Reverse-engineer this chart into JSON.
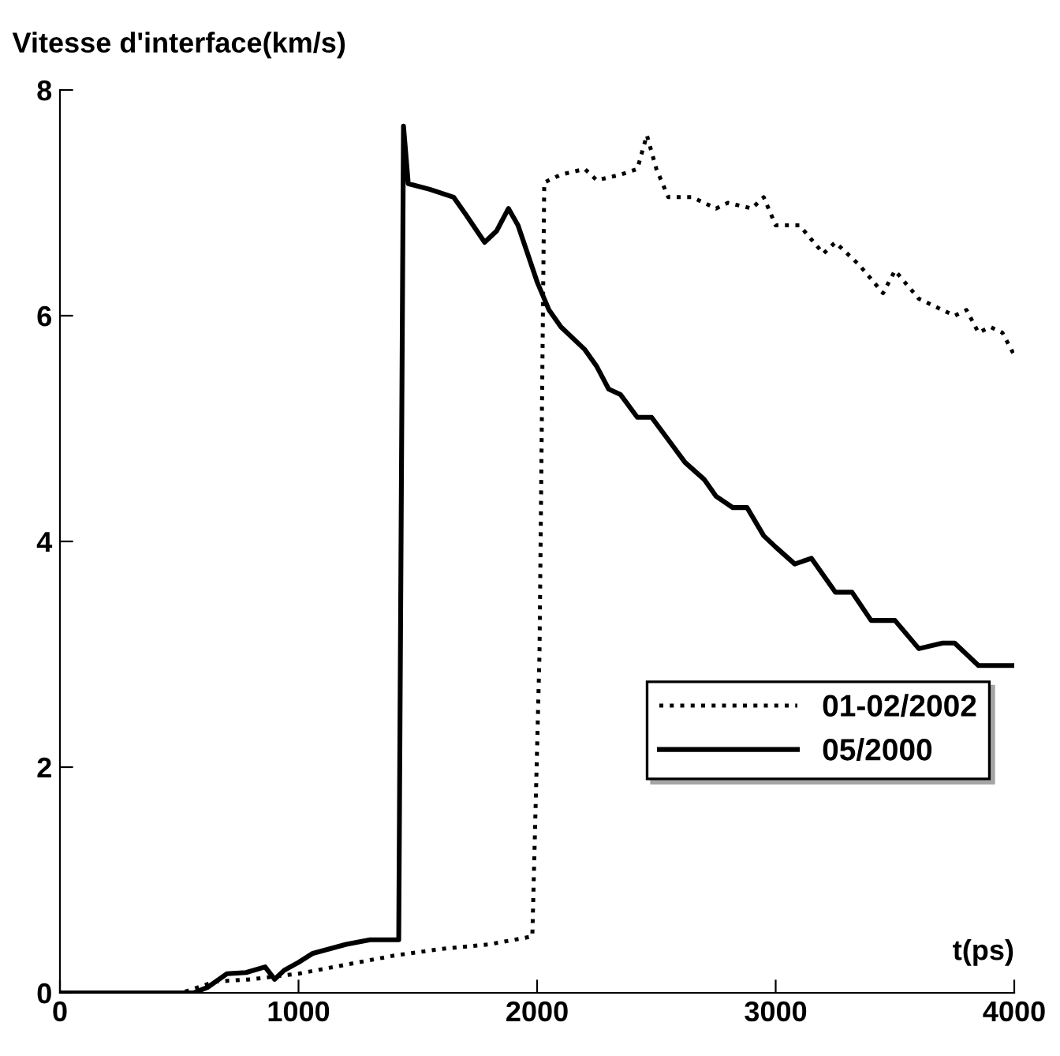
{
  "chart_data": {
    "type": "line",
    "xlabel": "t(ps)",
    "ylabel": "Vitesse d'interface(km/s)",
    "xlim": [
      0,
      4000
    ],
    "ylim": [
      0,
      8
    ],
    "xticks": [
      0,
      1000,
      2000,
      3000,
      4000
    ],
    "yticks": [
      0,
      2,
      4,
      6,
      8
    ],
    "grid": false,
    "legend": "bottom right",
    "series": [
      {
        "name": "01-02/2002",
        "color": "#000000",
        "line_style": "dotted",
        "x": [
          0,
          510,
          650,
          800,
          1000,
          1200,
          1400,
          1600,
          1800,
          1980,
          2010,
          2030,
          2100,
          2200,
          2250,
          2350,
          2420,
          2460,
          2500,
          2550,
          2650,
          2750,
          2800,
          2900,
          2950,
          3000,
          3100,
          3200,
          3250,
          3350,
          3450,
          3500,
          3600,
          3750,
          3800,
          3850,
          3900,
          3950,
          4000
        ],
        "values": [
          0,
          0,
          0.1,
          0.12,
          0.17,
          0.25,
          0.33,
          0.39,
          0.43,
          0.5,
          3.0,
          7.18,
          7.25,
          7.3,
          7.2,
          7.25,
          7.3,
          7.6,
          7.3,
          7.05,
          7.05,
          6.95,
          7.0,
          6.95,
          7.05,
          6.8,
          6.8,
          6.55,
          6.65,
          6.45,
          6.2,
          6.4,
          6.15,
          6.0,
          6.05,
          5.85,
          5.9,
          5.85,
          5.65
        ]
      },
      {
        "name": "05/2000",
        "color": "#000000",
        "line_style": "solid",
        "x": [
          0,
          560,
          620,
          700,
          780,
          860,
          900,
          940,
          1000,
          1060,
          1200,
          1300,
          1420,
          1440,
          1460,
          1550,
          1650,
          1700,
          1780,
          1830,
          1880,
          1920,
          1960,
          2000,
          2050,
          2100,
          2200,
          2250,
          2300,
          2350,
          2420,
          2480,
          2550,
          2620,
          2700,
          2750,
          2820,
          2880,
          2950,
          3000,
          3080,
          3150,
          3250,
          3320,
          3400,
          3500,
          3600,
          3700,
          3750,
          3850,
          3950,
          3990
        ],
        "values": [
          0,
          0,
          0.05,
          0.17,
          0.18,
          0.23,
          0.12,
          0.2,
          0.27,
          0.35,
          0.43,
          0.47,
          0.47,
          7.68,
          7.17,
          7.12,
          7.05,
          6.9,
          6.65,
          6.75,
          6.95,
          6.8,
          6.55,
          6.3,
          6.05,
          5.9,
          5.7,
          5.55,
          5.35,
          5.3,
          5.1,
          5.1,
          4.9,
          4.7,
          4.55,
          4.4,
          4.3,
          4.3,
          4.05,
          3.95,
          3.8,
          3.85,
          3.55,
          3.55,
          3.3,
          3.3,
          3.05,
          3.1,
          3.1,
          2.9,
          2.9,
          2.9
        ]
      }
    ]
  }
}
